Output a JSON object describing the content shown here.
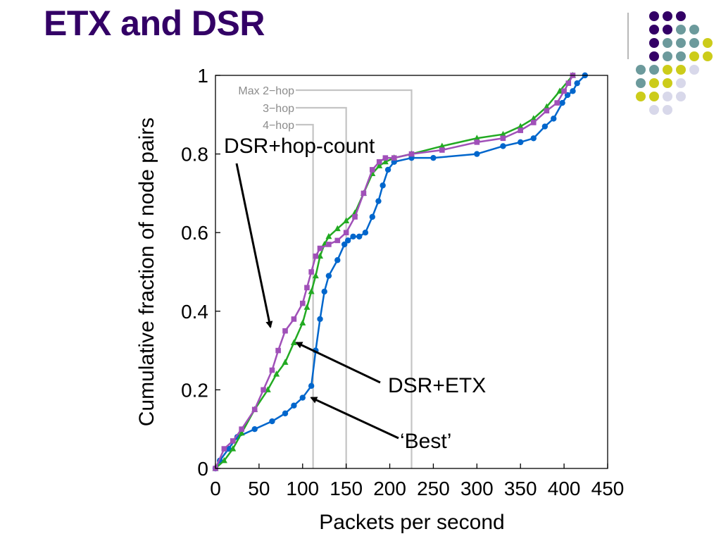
{
  "slide": {
    "title": "ETX and DSR"
  },
  "decor": {
    "dot_rows": [
      [
        "#330066",
        "#330066",
        "#330066"
      ],
      [
        "#330066",
        "#330066",
        "#6c9a9c",
        "#6c9a9c"
      ],
      [
        "#330066",
        "#6c9a9c",
        "#6c9a9c",
        "#6c9a9c",
        "#cccc1a"
      ],
      [
        "#330066",
        "#6c9a9c",
        "#6c9a9c",
        "#cccc1a",
        "#cccc1a"
      ],
      [
        "#6c9a9c",
        "#6c9a9c",
        "#cccc1a",
        "#cccc1a",
        "#d8d8ea"
      ],
      [
        "#6c9a9c",
        "#cccc1a",
        "#cccc1a",
        "#d8d8ea"
      ],
      [
        "#cccc1a",
        "#cccc1a",
        "#d8d8ea",
        "#d8d8ea"
      ],
      [
        "#d8d8ea",
        "#d8d8ea"
      ]
    ]
  },
  "chart_data": {
    "type": "line",
    "xlabel": "Packets per second",
    "ylabel": "Cumulative fraction of node pairs",
    "xlim": [
      0,
      450
    ],
    "ylim": [
      0,
      1
    ],
    "xticks": [
      0,
      50,
      100,
      150,
      200,
      250,
      300,
      350,
      400,
      450
    ],
    "yticks": [
      0,
      0.2,
      0.4,
      0.6,
      0.8,
      1
    ],
    "ytick_labels": [
      "0",
      "0.2",
      "0.4",
      "0.6",
      "0.8",
      "1"
    ],
    "grid": false,
    "reference_lines": [
      {
        "label": "Max 2−hop",
        "x": 225
      },
      {
        "label": "3−hop",
        "x": 150
      },
      {
        "label": "4−hop",
        "x": 112
      }
    ],
    "series": [
      {
        "color": "#0066cc",
        "marker": "circle",
        "x": [
          0,
          5,
          15,
          25,
          45,
          65,
          80,
          90,
          100,
          110,
          115,
          120,
          125,
          130,
          140,
          148,
          152,
          158,
          165,
          172,
          180,
          187,
          192,
          198,
          205,
          225,
          250,
          300,
          330,
          350,
          365,
          378,
          388,
          398,
          404,
          410,
          415,
          424
        ],
        "y": [
          0,
          0.02,
          0.05,
          0.08,
          0.1,
          0.12,
          0.14,
          0.16,
          0.18,
          0.21,
          0.3,
          0.38,
          0.45,
          0.49,
          0.53,
          0.57,
          0.58,
          0.59,
          0.59,
          0.6,
          0.64,
          0.68,
          0.72,
          0.76,
          0.78,
          0.79,
          0.79,
          0.8,
          0.82,
          0.83,
          0.84,
          0.87,
          0.89,
          0.93,
          0.95,
          0.96,
          0.98,
          1.0
        ]
      },
      {
        "color": "#22aa22",
        "marker": "triangle",
        "x": [
          0,
          10,
          20,
          30,
          45,
          60,
          70,
          80,
          90,
          100,
          105,
          110,
          115,
          120,
          125,
          130,
          140,
          150,
          160,
          170,
          180,
          188,
          195,
          205,
          225,
          260,
          300,
          330,
          350,
          365,
          380,
          395,
          410
        ],
        "y": [
          0,
          0.02,
          0.05,
          0.09,
          0.15,
          0.2,
          0.24,
          0.27,
          0.32,
          0.37,
          0.41,
          0.45,
          0.49,
          0.54,
          0.57,
          0.59,
          0.61,
          0.63,
          0.65,
          0.7,
          0.75,
          0.77,
          0.78,
          0.79,
          0.8,
          0.82,
          0.84,
          0.85,
          0.87,
          0.89,
          0.92,
          0.96,
          1.0
        ]
      },
      {
        "color": "#a050b8",
        "marker": "square",
        "x": [
          0,
          10,
          20,
          30,
          45,
          55,
          65,
          72,
          80,
          90,
          100,
          105,
          110,
          115,
          120,
          130,
          140,
          150,
          160,
          170,
          180,
          188,
          195,
          205,
          225,
          260,
          300,
          330,
          350,
          365,
          380,
          392,
          400,
          405,
          410
        ],
        "y": [
          0,
          0.05,
          0.07,
          0.1,
          0.15,
          0.2,
          0.25,
          0.3,
          0.35,
          0.38,
          0.42,
          0.46,
          0.5,
          0.54,
          0.56,
          0.57,
          0.58,
          0.6,
          0.64,
          0.7,
          0.76,
          0.78,
          0.79,
          0.79,
          0.8,
          0.81,
          0.83,
          0.84,
          0.86,
          0.88,
          0.91,
          0.93,
          0.96,
          0.98,
          1.0
        ]
      }
    ],
    "annotations": [
      {
        "text": "DSR+hop-count",
        "points_to": [
          63,
          0.36
        ]
      },
      {
        "text": "DSR+ETX",
        "points_to": [
          93,
          0.32
        ]
      },
      {
        "text": "‘Best’",
        "points_to": [
          110,
          0.18
        ]
      }
    ]
  }
}
